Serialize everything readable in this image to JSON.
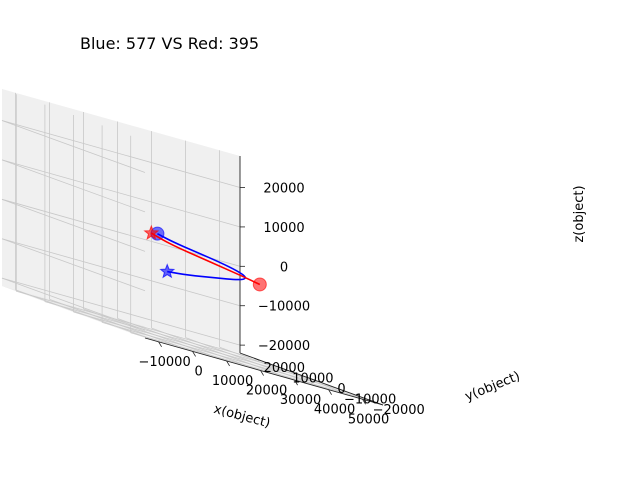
{
  "chart_data": {
    "type": "line",
    "projection": "3d",
    "title": "Blue: 577 VS Red: 395",
    "axes": {
      "x": {
        "label": "x(object)",
        "ticks": [
          -10000,
          0,
          10000,
          20000,
          30000,
          40000,
          50000
        ],
        "tick_labels": [
          "−10000",
          "0",
          "10000",
          "20000",
          "30000",
          "40000",
          "50000"
        ]
      },
      "y": {
        "label": "y(object)",
        "ticks": [
          -20000,
          -10000,
          0,
          10000,
          20000
        ],
        "tick_labels": [
          "−20000",
          "−10000",
          "0",
          "10000",
          "20000"
        ]
      },
      "z": {
        "label": "z(object)",
        "ticks": [
          -20000,
          -10000,
          0,
          10000,
          20000
        ],
        "tick_labels": [
          "−20000",
          "−10000",
          "0",
          "10000",
          "20000"
        ]
      }
    },
    "grid": true,
    "series": [
      {
        "color": "#0000ff",
        "points": [
          [
            9000,
            -2000,
            4000
          ],
          [
            14000,
            -1000,
            3000
          ],
          [
            22000,
            0,
            2000
          ],
          [
            30000,
            1000,
            1000
          ],
          [
            36000,
            2000,
            0
          ],
          [
            38000,
            1000,
            -1000
          ],
          [
            34000,
            -1000,
            -2000
          ],
          [
            24000,
            -4000,
            -3000
          ],
          [
            14000,
            -7000,
            -4000
          ],
          [
            6000,
            -9000,
            -4500
          ]
        ],
        "start_marker": "circle",
        "end_marker": "star"
      },
      {
        "color": "#ff0000",
        "points": [
          [
            45000,
            5000,
            -2000
          ],
          [
            38000,
            3000,
            -1000
          ],
          [
            30000,
            1000,
            0
          ],
          [
            22000,
            -1000,
            1000
          ],
          [
            14000,
            -3000,
            2000
          ],
          [
            8000,
            -5000,
            3000
          ],
          [
            3000,
            -7000,
            4000
          ]
        ],
        "start_marker": "circle",
        "end_marker": "star"
      }
    ]
  }
}
